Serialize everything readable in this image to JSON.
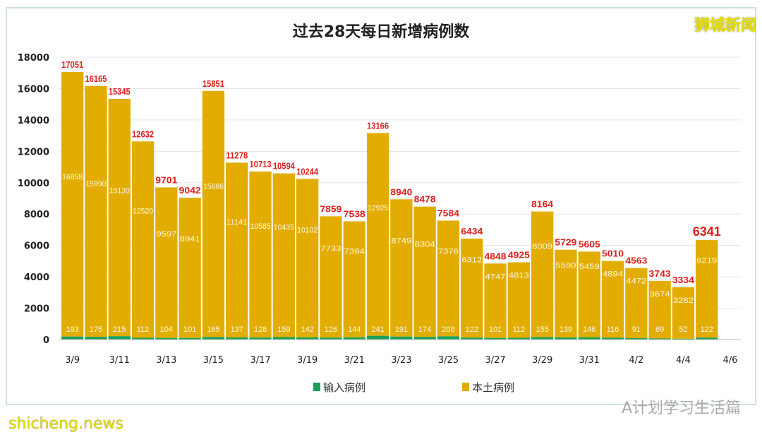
{
  "watermarks": {
    "top_right": "狮城新闻",
    "bottom_left": "shicheng.news",
    "bottom_right": "A计划学习生活篇"
  },
  "colors": {
    "local": "#E2AD00",
    "imported": "#1BA05A",
    "total_label": "#E0201E"
  },
  "chart_data": {
    "type": "bar",
    "stacked": true,
    "title": "过去28天每日新增病例数",
    "categories": [
      "3/9",
      "3/10",
      "3/11",
      "3/12",
      "3/13",
      "3/14",
      "3/15",
      "3/16",
      "3/17",
      "3/18",
      "3/19",
      "3/20",
      "3/21",
      "3/22",
      "3/23",
      "3/24",
      "3/25",
      "3/26",
      "3/27",
      "3/28",
      "3/29",
      "3/30",
      "3/31",
      "4/1",
      "4/2",
      "4/3",
      "4/4",
      "4/5"
    ],
    "x_tick_labels": [
      "3/9",
      "3/11",
      "3/13",
      "3/15",
      "3/17",
      "3/19",
      "3/21",
      "3/23",
      "3/25",
      "3/27",
      "3/29",
      "3/31",
      "4/2",
      "4/4",
      "4/6"
    ],
    "series": [
      {
        "name": "输入病例",
        "values": [
          193,
          175,
          215,
          112,
          104,
          101,
          165,
          137,
          128,
          159,
          142,
          126,
          144,
          241,
          191,
          174,
          208,
          122,
          101,
          112,
          155,
          139,
          146,
          116,
          91,
          69,
          52,
          122
        ]
      },
      {
        "name": "本土病例",
        "values": [
          16858,
          15990,
          15130,
          12520,
          9597,
          8941,
          15686,
          11141,
          10585,
          10435,
          10102,
          7733,
          7394,
          12925,
          8749,
          8304,
          7376,
          6312,
          4747,
          4813,
          8009,
          5590,
          5459,
          4894,
          4472,
          3674,
          3282,
          6219
        ]
      }
    ],
    "totals": [
      17051,
      16165,
      15345,
      12632,
      9701,
      9042,
      15851,
      11278,
      10713,
      10594,
      10244,
      7859,
      7538,
      13166,
      8940,
      8478,
      7584,
      6434,
      4848,
      4925,
      8164,
      5729,
      5605,
      5010,
      4563,
      3743,
      3334,
      6341
    ],
    "ylim": [
      0,
      18000
    ],
    "yticks": [
      0,
      2000,
      4000,
      6000,
      8000,
      10000,
      12000,
      14000,
      16000,
      18000
    ],
    "grid": true,
    "legend": "bottom"
  }
}
